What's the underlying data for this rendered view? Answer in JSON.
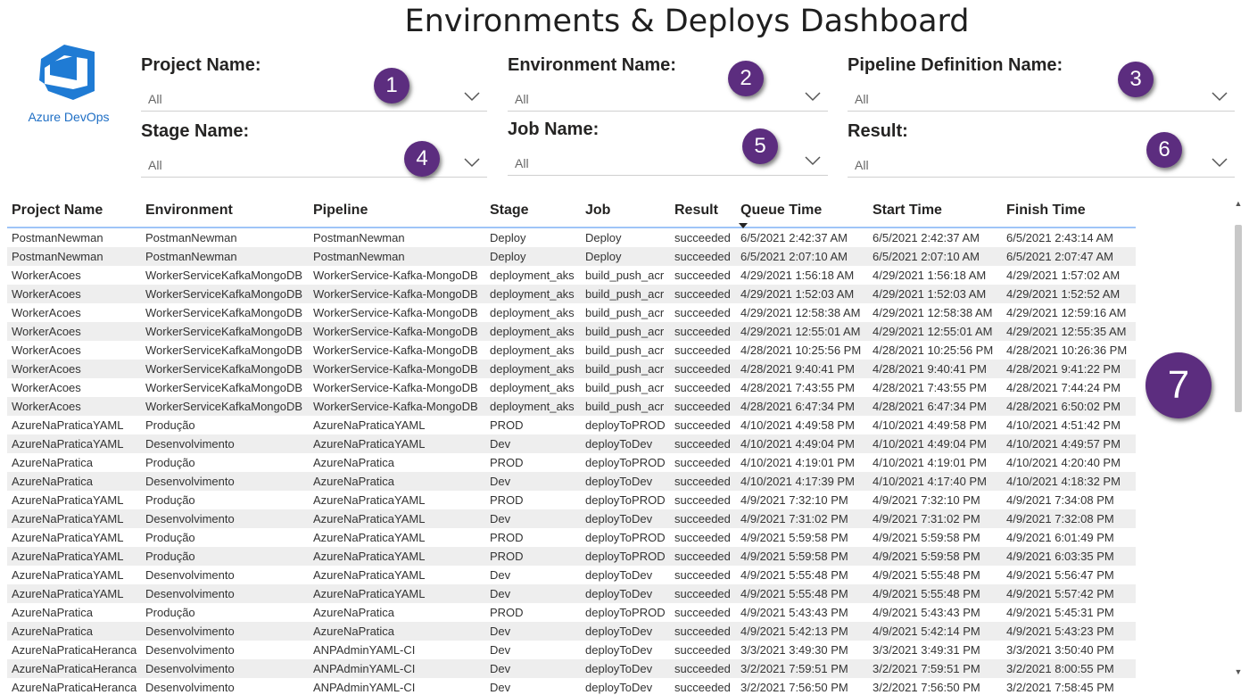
{
  "title": "Environments & Deploys Dashboard",
  "logo": {
    "text": "Azure DevOps",
    "icon": "azure-devops-logo"
  },
  "filters": [
    {
      "label": "Project Name:",
      "value": "All",
      "badge": "1"
    },
    {
      "label": "Environment Name:",
      "value": "All",
      "badge": "2"
    },
    {
      "label": "Pipeline Definition Name:",
      "value": "All",
      "badge": "3"
    },
    {
      "label": "Stage Name:",
      "value": "All",
      "badge": "4"
    },
    {
      "label": "Job Name:",
      "value": "All",
      "badge": "5"
    },
    {
      "label": "Result:",
      "value": "All",
      "badge": "6"
    }
  ],
  "table_badge": "7",
  "table": {
    "columns": [
      "Project Name",
      "Environment",
      "Pipeline",
      "Stage",
      "Job",
      "Result",
      "Queue Time",
      "Start Time",
      "Finish Time"
    ],
    "sorted_column": "Queue Time",
    "rows": [
      [
        "PostmanNewman",
        "PostmanNewman",
        "PostmanNewman",
        "Deploy",
        "Deploy",
        "succeeded",
        "6/5/2021 2:42:37 AM",
        "6/5/2021 2:42:37 AM",
        "6/5/2021 2:43:14 AM"
      ],
      [
        "PostmanNewman",
        "PostmanNewman",
        "PostmanNewman",
        "Deploy",
        "Deploy",
        "succeeded",
        "6/5/2021 2:07:10 AM",
        "6/5/2021 2:07:10 AM",
        "6/5/2021 2:07:47 AM"
      ],
      [
        "WorkerAcoes",
        "WorkerServiceKafkaMongoDB",
        "WorkerService-Kafka-MongoDB",
        "deployment_aks",
        "build_push_acr",
        "succeeded",
        "4/29/2021 1:56:18 AM",
        "4/29/2021 1:56:18 AM",
        "4/29/2021 1:57:02 AM"
      ],
      [
        "WorkerAcoes",
        "WorkerServiceKafkaMongoDB",
        "WorkerService-Kafka-MongoDB",
        "deployment_aks",
        "build_push_acr",
        "succeeded",
        "4/29/2021 1:52:03 AM",
        "4/29/2021 1:52:03 AM",
        "4/29/2021 1:52:52 AM"
      ],
      [
        "WorkerAcoes",
        "WorkerServiceKafkaMongoDB",
        "WorkerService-Kafka-MongoDB",
        "deployment_aks",
        "build_push_acr",
        "succeeded",
        "4/29/2021 12:58:38 AM",
        "4/29/2021 12:58:38 AM",
        "4/29/2021 12:59:16 AM"
      ],
      [
        "WorkerAcoes",
        "WorkerServiceKafkaMongoDB",
        "WorkerService-Kafka-MongoDB",
        "deployment_aks",
        "build_push_acr",
        "succeeded",
        "4/29/2021 12:55:01 AM",
        "4/29/2021 12:55:01 AM",
        "4/29/2021 12:55:35 AM"
      ],
      [
        "WorkerAcoes",
        "WorkerServiceKafkaMongoDB",
        "WorkerService-Kafka-MongoDB",
        "deployment_aks",
        "build_push_acr",
        "succeeded",
        "4/28/2021 10:25:56 PM",
        "4/28/2021 10:25:56 PM",
        "4/28/2021 10:26:36 PM"
      ],
      [
        "WorkerAcoes",
        "WorkerServiceKafkaMongoDB",
        "WorkerService-Kafka-MongoDB",
        "deployment_aks",
        "build_push_acr",
        "succeeded",
        "4/28/2021 9:40:41 PM",
        "4/28/2021 9:40:41 PM",
        "4/28/2021 9:41:22 PM"
      ],
      [
        "WorkerAcoes",
        "WorkerServiceKafkaMongoDB",
        "WorkerService-Kafka-MongoDB",
        "deployment_aks",
        "build_push_acr",
        "succeeded",
        "4/28/2021 7:43:55 PM",
        "4/28/2021 7:43:55 PM",
        "4/28/2021 7:44:24 PM"
      ],
      [
        "WorkerAcoes",
        "WorkerServiceKafkaMongoDB",
        "WorkerService-Kafka-MongoDB",
        "deployment_aks",
        "build_push_acr",
        "succeeded",
        "4/28/2021 6:47:34 PM",
        "4/28/2021 6:47:34 PM",
        "4/28/2021 6:50:02 PM"
      ],
      [
        "AzureNaPraticaYAML",
        "Produção",
        "AzureNaPraticaYAML",
        "PROD",
        "deployToPROD",
        "succeeded",
        "4/10/2021 4:49:58 PM",
        "4/10/2021 4:49:58 PM",
        "4/10/2021 4:51:42 PM"
      ],
      [
        "AzureNaPraticaYAML",
        "Desenvolvimento",
        "AzureNaPraticaYAML",
        "Dev",
        "deployToDev",
        "succeeded",
        "4/10/2021 4:49:04 PM",
        "4/10/2021 4:49:04 PM",
        "4/10/2021 4:49:57 PM"
      ],
      [
        "AzureNaPratica",
        "Produção",
        "AzureNaPratica",
        "PROD",
        "deployToPROD",
        "succeeded",
        "4/10/2021 4:19:01 PM",
        "4/10/2021 4:19:01 PM",
        "4/10/2021 4:20:40 PM"
      ],
      [
        "AzureNaPratica",
        "Desenvolvimento",
        "AzureNaPratica",
        "Dev",
        "deployToDev",
        "succeeded",
        "4/10/2021 4:17:39 PM",
        "4/10/2021 4:17:40 PM",
        "4/10/2021 4:18:32 PM"
      ],
      [
        "AzureNaPraticaYAML",
        "Produção",
        "AzureNaPraticaYAML",
        "PROD",
        "deployToPROD",
        "succeeded",
        "4/9/2021 7:32:10 PM",
        "4/9/2021 7:32:10 PM",
        "4/9/2021 7:34:08 PM"
      ],
      [
        "AzureNaPraticaYAML",
        "Desenvolvimento",
        "AzureNaPraticaYAML",
        "Dev",
        "deployToDev",
        "succeeded",
        "4/9/2021 7:31:02 PM",
        "4/9/2021 7:31:02 PM",
        "4/9/2021 7:32:08 PM"
      ],
      [
        "AzureNaPraticaYAML",
        "Produção",
        "AzureNaPraticaYAML",
        "PROD",
        "deployToPROD",
        "succeeded",
        "4/9/2021 5:59:58 PM",
        "4/9/2021 5:59:58 PM",
        "4/9/2021 6:01:49 PM"
      ],
      [
        "AzureNaPraticaYAML",
        "Produção",
        "AzureNaPraticaYAML",
        "PROD",
        "deployToPROD",
        "succeeded",
        "4/9/2021 5:59:58 PM",
        "4/9/2021 5:59:58 PM",
        "4/9/2021 6:03:35 PM"
      ],
      [
        "AzureNaPraticaYAML",
        "Desenvolvimento",
        "AzureNaPraticaYAML",
        "Dev",
        "deployToDev",
        "succeeded",
        "4/9/2021 5:55:48 PM",
        "4/9/2021 5:55:48 PM",
        "4/9/2021 5:56:47 PM"
      ],
      [
        "AzureNaPraticaYAML",
        "Desenvolvimento",
        "AzureNaPraticaYAML",
        "Dev",
        "deployToDev",
        "succeeded",
        "4/9/2021 5:55:48 PM",
        "4/9/2021 5:55:48 PM",
        "4/9/2021 5:57:42 PM"
      ],
      [
        "AzureNaPratica",
        "Produção",
        "AzureNaPratica",
        "PROD",
        "deployToPROD",
        "succeeded",
        "4/9/2021 5:43:43 PM",
        "4/9/2021 5:43:43 PM",
        "4/9/2021 5:45:31 PM"
      ],
      [
        "AzureNaPratica",
        "Desenvolvimento",
        "AzureNaPratica",
        "Dev",
        "deployToDev",
        "succeeded",
        "4/9/2021 5:42:13 PM",
        "4/9/2021 5:42:14 PM",
        "4/9/2021 5:43:23 PM"
      ],
      [
        "AzureNaPraticaHeranca",
        "Desenvolvimento",
        "ANPAdminYAML-CI",
        "Dev",
        "deployToDev",
        "succeeded",
        "3/3/2021 3:49:30 PM",
        "3/3/2021 3:49:31 PM",
        "3/3/2021 3:50:40 PM"
      ],
      [
        "AzureNaPraticaHeranca",
        "Desenvolvimento",
        "ANPAdminYAML-CI",
        "Dev",
        "deployToDev",
        "succeeded",
        "3/2/2021 7:59:51 PM",
        "3/2/2021 7:59:51 PM",
        "3/2/2021 8:00:55 PM"
      ],
      [
        "AzureNaPraticaHeranca",
        "Desenvolvimento",
        "ANPAdminYAML-CI",
        "Dev",
        "deployToDev",
        "succeeded",
        "3/2/2021 7:56:50 PM",
        "3/2/2021 7:56:50 PM",
        "3/2/2021 7:58:45 PM"
      ]
    ]
  }
}
